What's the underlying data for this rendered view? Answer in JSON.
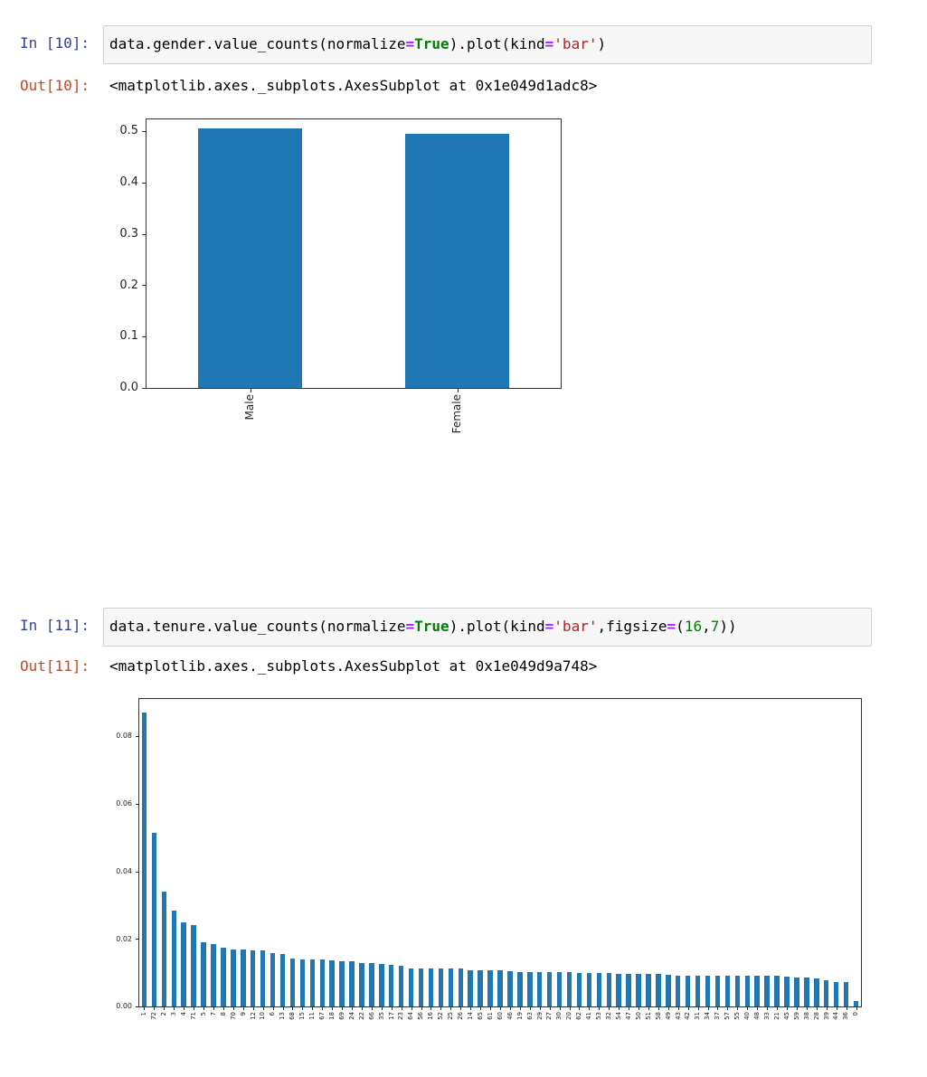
{
  "cells": [
    {
      "in_prompt": "In [10]:",
      "code_tokens": [
        {
          "t": "data.gender.value_counts(normalize",
          "c": ""
        },
        {
          "t": "=",
          "c": "op"
        },
        {
          "t": "True",
          "c": "kw"
        },
        {
          "t": ").plot(kind",
          "c": ""
        },
        {
          "t": "=",
          "c": "op"
        },
        {
          "t": "'bar'",
          "c": "str"
        },
        {
          "t": ")",
          "c": ""
        }
      ],
      "out_prompt": "Out[10]:",
      "out_text": "<matplotlib.axes._subplots.AxesSubplot at 0x1e049d1adc8>"
    },
    {
      "in_prompt": "In [11]:",
      "code_tokens": [
        {
          "t": "data.tenure.value_counts(normalize",
          "c": ""
        },
        {
          "t": "=",
          "c": "op"
        },
        {
          "t": "True",
          "c": "kw"
        },
        {
          "t": ").plot(kind",
          "c": ""
        },
        {
          "t": "=",
          "c": "op"
        },
        {
          "t": "'bar'",
          "c": "str"
        },
        {
          "t": ",figsize",
          "c": ""
        },
        {
          "t": "=",
          "c": "op"
        },
        {
          "t": "(",
          "c": ""
        },
        {
          "t": "16",
          "c": "num"
        },
        {
          "t": ",",
          "c": ""
        },
        {
          "t": "7",
          "c": "num"
        },
        {
          "t": "))",
          "c": ""
        }
      ],
      "out_prompt": "Out[11]:",
      "out_text": "<matplotlib.axes._subplots.AxesSubplot at 0x1e049d9a748>"
    }
  ],
  "colors": {
    "bar": "#1f77b4",
    "in_prompt": "#303f9f",
    "out_prompt": "#d84315"
  },
  "chart_data": [
    {
      "type": "bar",
      "title": "",
      "xlabel": "",
      "ylabel": "",
      "categories": [
        "Male",
        "Female"
      ],
      "values": [
        0.505,
        0.495
      ],
      "ylim": [
        0,
        0.525
      ],
      "yticks": [
        "0.0",
        "0.1",
        "0.2",
        "0.3",
        "0.4",
        "0.5"
      ],
      "grid": false,
      "legend": null
    },
    {
      "type": "bar",
      "title": "",
      "xlabel": "",
      "ylabel": "",
      "categories": [
        "1",
        "72",
        "2",
        "3",
        "4",
        "71",
        "5",
        "7",
        "8",
        "70",
        "9",
        "12",
        "10",
        "6",
        "13",
        "68",
        "15",
        "11",
        "67",
        "18",
        "69",
        "24",
        "22",
        "66",
        "35",
        "17",
        "23",
        "64",
        "56",
        "16",
        "52",
        "25",
        "26",
        "14",
        "65",
        "61",
        "60",
        "46",
        "19",
        "63",
        "29",
        "27",
        "30",
        "20",
        "62",
        "41",
        "53",
        "32",
        "54",
        "47",
        "50",
        "51",
        "58",
        "49",
        "43",
        "42",
        "31",
        "34",
        "37",
        "57",
        "55",
        "40",
        "48",
        "33",
        "21",
        "45",
        "59",
        "38",
        "28",
        "39",
        "44",
        "36",
        "0"
      ],
      "values": [
        0.087,
        0.0515,
        0.034,
        0.0285,
        0.025,
        0.024,
        0.019,
        0.0185,
        0.0175,
        0.017,
        0.017,
        0.0167,
        0.0167,
        0.0157,
        0.0155,
        0.0143,
        0.014,
        0.014,
        0.014,
        0.0137,
        0.0135,
        0.0135,
        0.0128,
        0.0128,
        0.0125,
        0.0123,
        0.012,
        0.0113,
        0.0113,
        0.0113,
        0.0113,
        0.0113,
        0.0113,
        0.0108,
        0.0108,
        0.0108,
        0.0108,
        0.0105,
        0.0103,
        0.0103,
        0.0103,
        0.0103,
        0.0103,
        0.0101,
        0.0099,
        0.0099,
        0.0099,
        0.0099,
        0.0097,
        0.0097,
        0.0097,
        0.0097,
        0.0097,
        0.0094,
        0.0092,
        0.0092,
        0.0092,
        0.0092,
        0.0092,
        0.0092,
        0.0092,
        0.0092,
        0.0092,
        0.0092,
        0.009,
        0.0088,
        0.0085,
        0.0085,
        0.0082,
        0.0079,
        0.0073,
        0.0073,
        0.0016
      ],
      "ylim": [
        0,
        0.0913
      ],
      "yticks": [
        "0.00",
        "0.02",
        "0.04",
        "0.06",
        "0.08"
      ],
      "grid": false,
      "legend": null
    }
  ]
}
